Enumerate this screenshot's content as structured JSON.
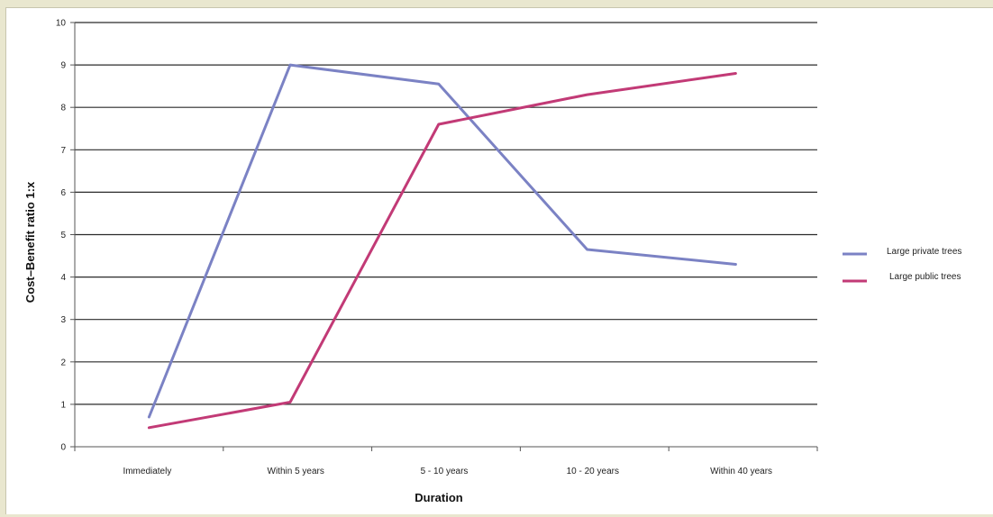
{
  "chart_data": {
    "type": "line",
    "title": "",
    "xlabel": "Duration",
    "ylabel": "Cost–Benefit ratio 1:x",
    "categories": [
      "Immediately",
      "Within 5 years",
      "5 - 10 years",
      "10 - 20 years",
      "Within 40 years"
    ],
    "ylim": [
      0,
      10
    ],
    "yticks": [
      "0",
      "1",
      "2",
      "3",
      "4",
      "5",
      "6",
      "7",
      "8",
      "9",
      "10"
    ],
    "grid": true,
    "legend_position": "right",
    "series": [
      {
        "name": "Large private trees",
        "color": "#7b82c4",
        "points": [
          [
            0,
            0.7
          ],
          [
            0.95,
            9.0
          ],
          [
            1.95,
            8.55
          ],
          [
            2.95,
            4.65
          ],
          [
            3.95,
            4.3
          ]
        ]
      },
      {
        "name": "Large public trees",
        "color": "#c23a76",
        "points": [
          [
            0,
            0.45
          ],
          [
            0.95,
            1.05
          ],
          [
            1.95,
            7.6
          ],
          [
            2.95,
            8.3
          ],
          [
            3.95,
            8.8
          ]
        ]
      }
    ]
  }
}
